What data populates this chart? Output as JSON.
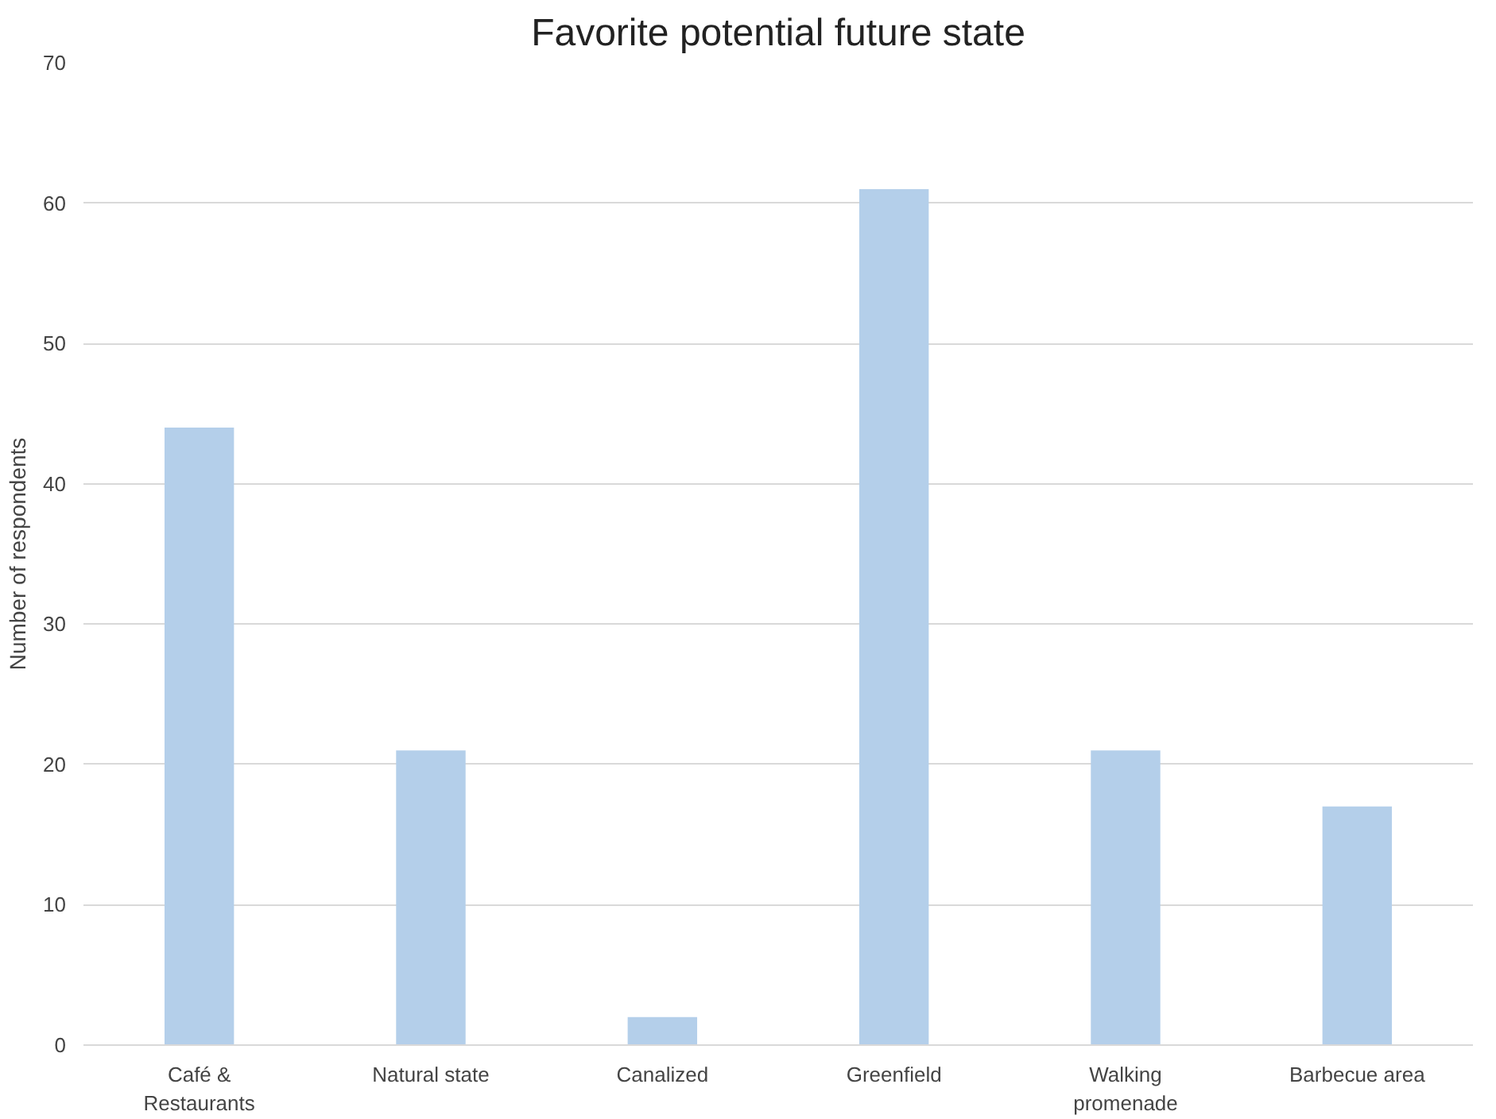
{
  "chart_data": {
    "type": "bar",
    "title": "Favorite potential future state",
    "ylabel": "Number of respondents",
    "categories": [
      "Café & Restaurants",
      "Natural state",
      "Canalized",
      "Greenfield",
      "Walking promenade",
      "Barbecue area"
    ],
    "values": [
      44,
      21,
      2,
      61,
      21,
      17
    ],
    "color": "#b4cfea",
    "ylim": [
      0,
      70
    ],
    "yticks": [
      0,
      10,
      20,
      30,
      40,
      50,
      60,
      70
    ],
    "grid": "y"
  }
}
